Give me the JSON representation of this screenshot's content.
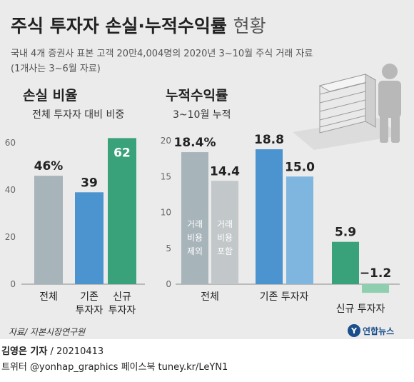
{
  "title_main": "주식 투자자 손실·누적수익률",
  "title_suffix": "현황",
  "subtitle_1": "국내 4개 증권사 표본 고객 20만4,004명의 2020년 3~10월 주식 거래 자료",
  "subtitle_2": "(1개사는 3~6월 자료)",
  "source": "자료/ 자본시장연구원",
  "logo_text": "연합뉴스",
  "footer": {
    "author": "김영은 기자",
    "date": "/ 20210413",
    "social": "트위터 @yonhap_graphics  페이스북 tuney.kr/LeYN1"
  },
  "colors": {
    "gray": "#a7b4ba",
    "gray_light": "#c2c7c9",
    "blue": "#4b94cf",
    "blue_light": "#7fb6e0",
    "green": "#3aa27a",
    "green_light": "#8fcfb0"
  },
  "chart_data": [
    {
      "type": "bar",
      "title": "손실 비율",
      "subtitle": "전체 투자자 대비 비중",
      "ylim": [
        0,
        60
      ],
      "yticks": [
        0,
        20,
        40,
        60
      ],
      "categories": [
        "전체",
        "기존 투자자",
        "신규 투자자"
      ],
      "values": [
        46,
        39,
        62
      ],
      "value_labels": [
        "46%",
        "39",
        "62"
      ],
      "grid": false
    },
    {
      "type": "bar",
      "title": "누적수익률",
      "subtitle": "3~10월 누적",
      "ylim": [
        0,
        20
      ],
      "yticks": [
        0,
        5,
        10,
        15,
        20
      ],
      "groups": [
        {
          "category": "전체",
          "bars": [
            {
              "label": "거래 비용 제외",
              "value": 18.4,
              "value_label": "18.4%"
            },
            {
              "label": "거래 비용 포함",
              "value": 14.4,
              "value_label": "14.4"
            }
          ]
        },
        {
          "category": "기존 투자자",
          "bars": [
            {
              "label": "",
              "value": 18.8,
              "value_label": "18.8"
            },
            {
              "label": "",
              "value": 15.0,
              "value_label": "15.0"
            }
          ]
        },
        {
          "category": "신규 투자자",
          "bars": [
            {
              "label": "",
              "value": 5.9,
              "value_label": "5.9"
            },
            {
              "label": "",
              "value": -1.2,
              "value_label": "−1.2"
            }
          ]
        }
      ],
      "grid": false
    }
  ]
}
